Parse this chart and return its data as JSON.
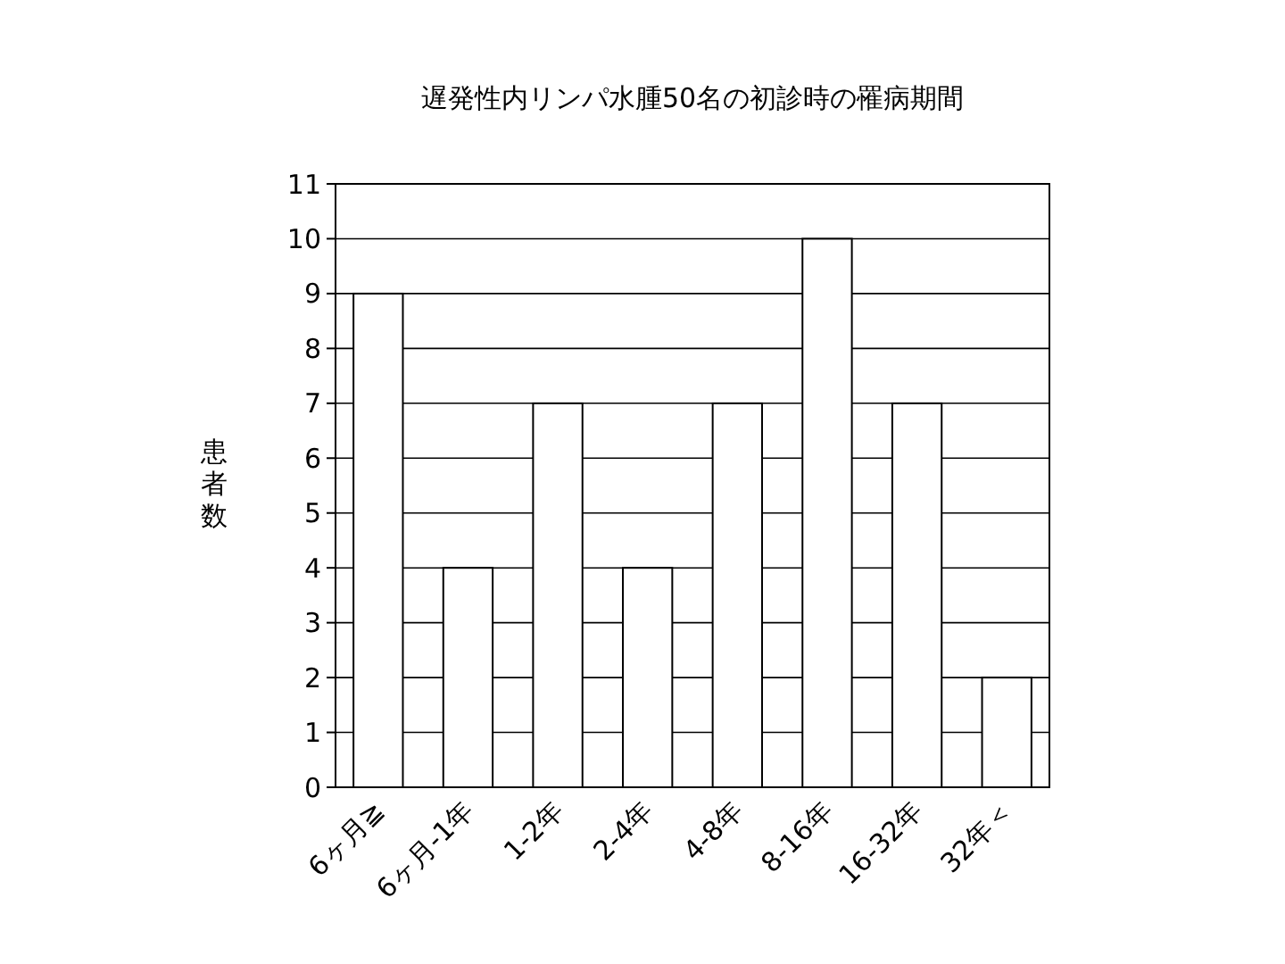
{
  "chart_data": {
    "type": "bar",
    "title": "遅発性内リンパ水腫50名の初診時の罹病期間",
    "ylabel": "患者数",
    "categories": [
      "6ヶ月≧",
      "6ヶ月-1年",
      "1-2年",
      "2-4年",
      "4-8年",
      "8-16年",
      "16-32年",
      "32年＜"
    ],
    "values": [
      9,
      4,
      7,
      4,
      7,
      10,
      7,
      2
    ],
    "color": "#ffffff",
    "ylim": [
      0,
      11
    ],
    "yticks": [
      0,
      1,
      2,
      3,
      4,
      5,
      6,
      7,
      8,
      9,
      10,
      11
    ],
    "grid": "y"
  }
}
